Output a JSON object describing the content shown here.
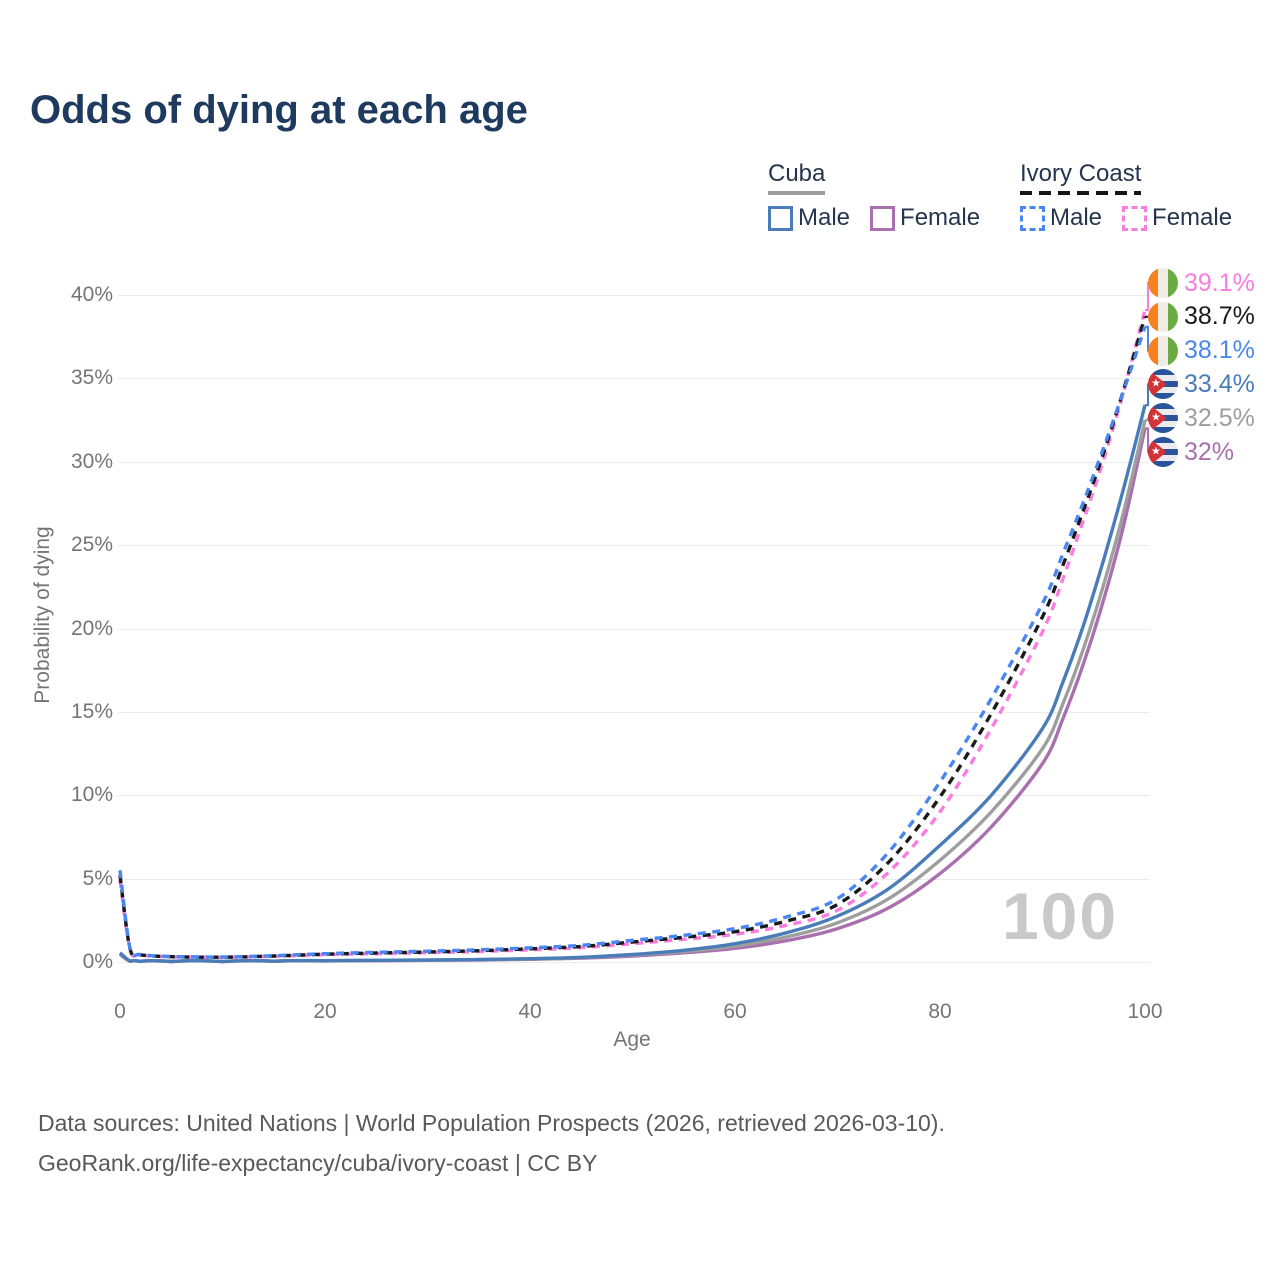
{
  "title": "Odds of dying at each age",
  "legend": {
    "groups": [
      {
        "label": "Cuba",
        "items": [
          {
            "label": "Male"
          },
          {
            "label": "Female"
          }
        ]
      },
      {
        "label": "Ivory Coast",
        "items": [
          {
            "label": "Male"
          },
          {
            "label": "Female"
          }
        ]
      }
    ]
  },
  "axis": {
    "x_label": "Age",
    "y_label": "Probability of dying",
    "y_ticks": [
      {
        "label": "40%",
        "value": 40
      },
      {
        "label": "35%",
        "value": 35
      },
      {
        "label": "30%",
        "value": 30
      },
      {
        "label": "25%",
        "value": 25
      },
      {
        "label": "20%",
        "value": 20
      },
      {
        "label": "15%",
        "value": 15
      },
      {
        "label": "10%",
        "value": 10
      },
      {
        "label": "5%",
        "value": 5
      },
      {
        "label": "0%",
        "value": 0
      }
    ],
    "x_ticks": [
      {
        "label": "0",
        "value": 0
      },
      {
        "label": "20",
        "value": 20
      },
      {
        "label": "40",
        "value": 40
      },
      {
        "label": "60",
        "value": 60
      },
      {
        "label": "80",
        "value": 80
      },
      {
        "label": "100",
        "value": 100
      }
    ]
  },
  "watermark": "100",
  "footer": {
    "line1": "Data sources: United Nations | World Population Prospects (2026, retrieved 2026-03-10).",
    "line2": "GeoRank.org/life-expectancy/cuba/ivory-coast | CC BY"
  },
  "chart_data": {
    "type": "line",
    "title": "Odds of dying at each age",
    "xlabel": "Age",
    "ylabel": "Probability of dying",
    "x_range": [
      0,
      100
    ],
    "y_range_percent": [
      0,
      40
    ],
    "grid": "horizontal",
    "x": [
      0,
      1,
      2,
      5,
      10,
      15,
      20,
      25,
      30,
      35,
      40,
      45,
      50,
      55,
      60,
      65,
      70,
      75,
      80,
      85,
      90,
      92,
      94,
      96,
      98,
      100
    ],
    "series": [
      {
        "key": "ic_female",
        "name": "Ivory Coast Female",
        "country": "Ivory Coast",
        "sex": "Female",
        "color": "#fa7ce0",
        "dashed": true,
        "flag": "ivory-coast",
        "end_label": "39.1%",
        "values": [
          4.9,
          0.7,
          0.42,
          0.31,
          0.28,
          0.34,
          0.44,
          0.5,
          0.56,
          0.63,
          0.73,
          0.86,
          1.1,
          1.36,
          1.66,
          2.2,
          3.1,
          5.4,
          9.0,
          14.0,
          19.8,
          23.0,
          26.5,
          30.2,
          34.4,
          39.1
        ]
      },
      {
        "key": "ic_both",
        "name": "Ivory Coast Both sexes",
        "country": "Ivory Coast",
        "sex": "Both",
        "color": "#1a1a1a",
        "dashed": true,
        "flag": "ivory-coast",
        "end_label": "38.7%",
        "values": [
          5.2,
          0.72,
          0.43,
          0.32,
          0.29,
          0.36,
          0.47,
          0.54,
          0.6,
          0.68,
          0.79,
          0.93,
          1.2,
          1.48,
          1.82,
          2.45,
          3.45,
          6.0,
          9.9,
          14.9,
          20.7,
          23.8,
          27.1,
          30.6,
          34.5,
          38.7
        ]
      },
      {
        "key": "ic_male",
        "name": "Ivory Coast Male",
        "country": "Ivory Coast",
        "sex": "Male",
        "color": "#4a86f0",
        "dashed": true,
        "flag": "ivory-coast",
        "end_label": "38.1%",
        "values": [
          5.5,
          0.75,
          0.45,
          0.33,
          0.3,
          0.38,
          0.5,
          0.58,
          0.65,
          0.73,
          0.85,
          1.0,
          1.3,
          1.6,
          2.0,
          2.7,
          3.8,
          6.6,
          10.8,
          15.8,
          21.5,
          24.5,
          27.6,
          30.9,
          34.4,
          38.1
        ]
      },
      {
        "key": "cuba_male",
        "name": "Cuba Male",
        "country": "Cuba",
        "sex": "Male",
        "color": "#4a7db8",
        "dashed": false,
        "flag": "cuba",
        "end_label": "33.4%",
        "values": [
          0.55,
          0.05,
          0.04,
          0.03,
          0.03,
          0.05,
          0.08,
          0.1,
          0.12,
          0.15,
          0.2,
          0.28,
          0.45,
          0.7,
          1.1,
          1.75,
          2.75,
          4.4,
          7.0,
          10.0,
          14.0,
          16.8,
          20.2,
          24.2,
          28.6,
          33.4
        ]
      },
      {
        "key": "cuba_both",
        "name": "Cuba Both sexes",
        "country": "Cuba",
        "sex": "Both",
        "color": "#9e9e9e",
        "dashed": false,
        "flag": "cuba",
        "end_label": "32.5%",
        "values": [
          0.5,
          0.045,
          0.035,
          0.028,
          0.028,
          0.045,
          0.07,
          0.09,
          0.11,
          0.14,
          0.18,
          0.26,
          0.41,
          0.63,
          0.95,
          1.5,
          2.35,
          3.8,
          6.1,
          9.0,
          12.8,
          15.5,
          18.8,
          22.7,
          27.2,
          32.5
        ]
      },
      {
        "key": "cuba_female",
        "name": "Cuba Female",
        "country": "Cuba",
        "sex": "Female",
        "color": "#aa6fae",
        "dashed": false,
        "flag": "cuba",
        "end_label": "32%",
        "values": [
          0.45,
          0.04,
          0.03,
          0.025,
          0.025,
          0.04,
          0.06,
          0.08,
          0.1,
          0.12,
          0.16,
          0.23,
          0.36,
          0.55,
          0.82,
          1.28,
          2.0,
          3.25,
          5.3,
          8.1,
          11.9,
          14.6,
          17.9,
          21.8,
          26.4,
          32.0
        ]
      }
    ]
  }
}
